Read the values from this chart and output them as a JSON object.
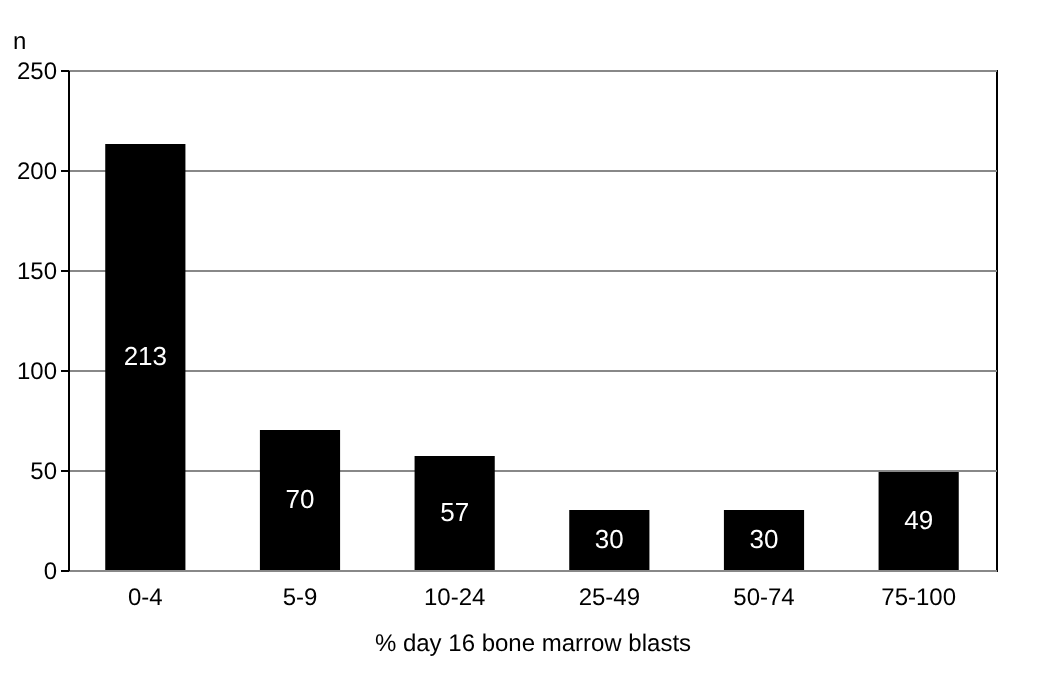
{
  "chart_data": {
    "type": "bar",
    "xlabel": "% day 16 bone marrow blasts",
    "ylabel": "n",
    "categories": [
      "0-4",
      "5-9",
      "10-24",
      "25-49",
      "50-74",
      "75-100"
    ],
    "values": [
      213,
      70,
      57,
      30,
      30,
      49
    ],
    "color": "#000000",
    "ylim": [
      0,
      250
    ],
    "yticks": [
      0,
      50,
      100,
      150,
      200,
      250
    ],
    "grid": "y",
    "data_labels": true
  }
}
